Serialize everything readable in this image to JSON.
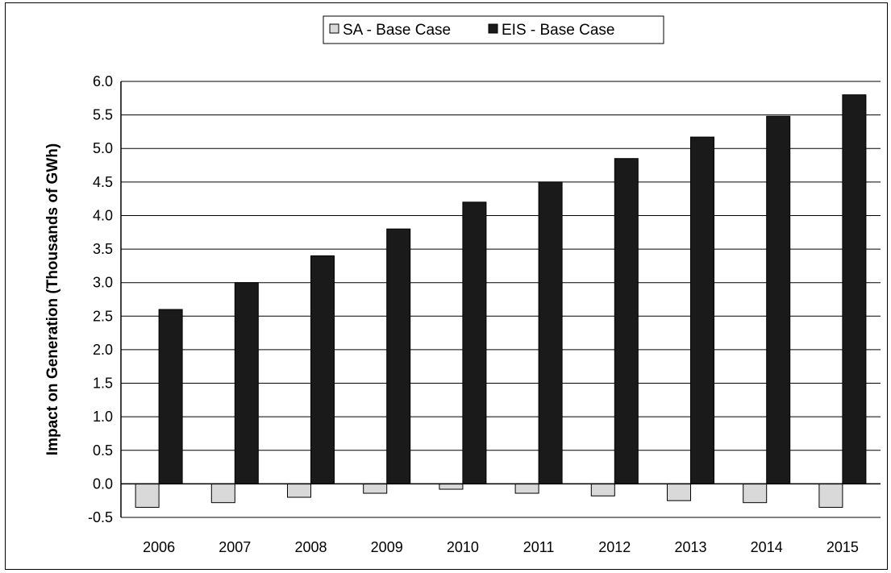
{
  "chart_data": {
    "type": "bar",
    "categories": [
      "2006",
      "2007",
      "2008",
      "2009",
      "2010",
      "2011",
      "2012",
      "2013",
      "2014",
      "2015"
    ],
    "series": [
      {
        "name": "SA - Base Case",
        "values": [
          -0.35,
          -0.28,
          -0.2,
          -0.14,
          -0.08,
          -0.14,
          -0.18,
          -0.25,
          -0.28,
          -0.35
        ],
        "color": "#d9d9d9"
      },
      {
        "name": "EIS - Base Case",
        "values": [
          2.6,
          3.0,
          3.4,
          3.8,
          4.2,
          4.5,
          4.85,
          5.17,
          5.48,
          5.8
        ],
        "color": "#1a1a1a"
      }
    ],
    "xlabel": "",
    "ylabel": "Impact on Generation (Thousands of GWh)",
    "ylim": [
      -0.5,
      6.0
    ],
    "yticks": [
      "-0.5",
      "0.0",
      "0.5",
      "1.0",
      "1.5",
      "2.0",
      "2.5",
      "3.0",
      "3.5",
      "4.0",
      "4.5",
      "5.0",
      "5.5",
      "6.0"
    ],
    "grid": true,
    "legend_position": "top-center"
  }
}
